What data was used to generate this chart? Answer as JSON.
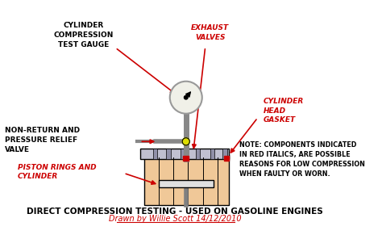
{
  "bg_color": "#ffffff",
  "title": "DIRECT COMPRESSION TESTING - USED ON GASOLINE ENGINES",
  "subtitle": "Drawn by Willie Scott 14/12/2010",
  "title_fontsize": 7.5,
  "subtitle_fontsize": 7,
  "note_text": "NOTE: COMPONENTS INDICATED\nIN RED ITALICS, ARE POSSIBLE\nREASONS FOR LOW COMPRESSION\nWHEN FAULTY OR WORN.",
  "labels": {
    "cylinder_gauge": "CYLINDER\nCOMPRESSION\nTEST GAUGE",
    "exhaust_valves": "EXHAUST\nVALVES",
    "non_return": "NON-RETURN AND\nPRESSURE RELIEF\nVALVE",
    "cylinder_head_gasket": "CYLINDER\nHEAD\nGASKET",
    "piston_rings": "PISTON RINGS AND\nCYLINDER"
  },
  "colors": {
    "black": "#000000",
    "red": "#cc0000",
    "gauge_face": "#f0f0e8",
    "gauge_border": "#999999",
    "head_color": "#c0c0d0",
    "cylinder_color": "#f0c898",
    "block_color": "#f0c898",
    "probe_color": "#888888",
    "piston_color": "#e0e0e0"
  }
}
